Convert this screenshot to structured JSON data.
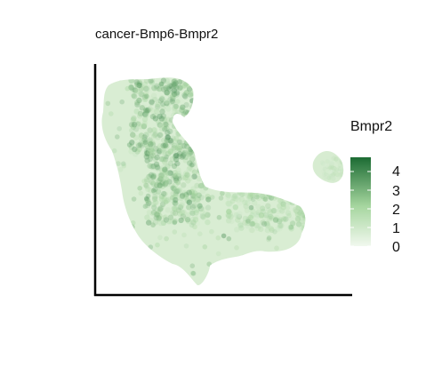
{
  "chart_data": {
    "type": "scatter",
    "title": "cancer-Bmp6-Bmpr2",
    "xlabel": "",
    "ylabel": "",
    "axes": {
      "x_ticks": false,
      "y_ticks": false,
      "grid": false
    },
    "legend": {
      "title": "Bmpr2",
      "placement": "right",
      "ticks": [
        "4",
        "3",
        "2",
        "1",
        "0"
      ],
      "min": 0,
      "max": 4.8
    },
    "colors": {
      "low": "#f1f8ee",
      "mid": "#a6d69f",
      "high": "#1c6b33",
      "axis": "#000000"
    },
    "clusters": [
      {
        "name": "main",
        "cx": 0.32,
        "cy": 0.48,
        "density": 1.0,
        "mean_value": 0.72
      },
      {
        "name": "upper-lobe",
        "cx": 0.26,
        "cy": 0.76,
        "density": 0.95,
        "mean_value": 0.78
      },
      {
        "name": "right-arm",
        "cx": 0.68,
        "cy": 0.37,
        "density": 0.72,
        "mean_value": 0.52
      },
      {
        "name": "island",
        "cx": 0.92,
        "cy": 0.55,
        "density": 0.38,
        "mean_value": 0.34
      }
    ]
  }
}
